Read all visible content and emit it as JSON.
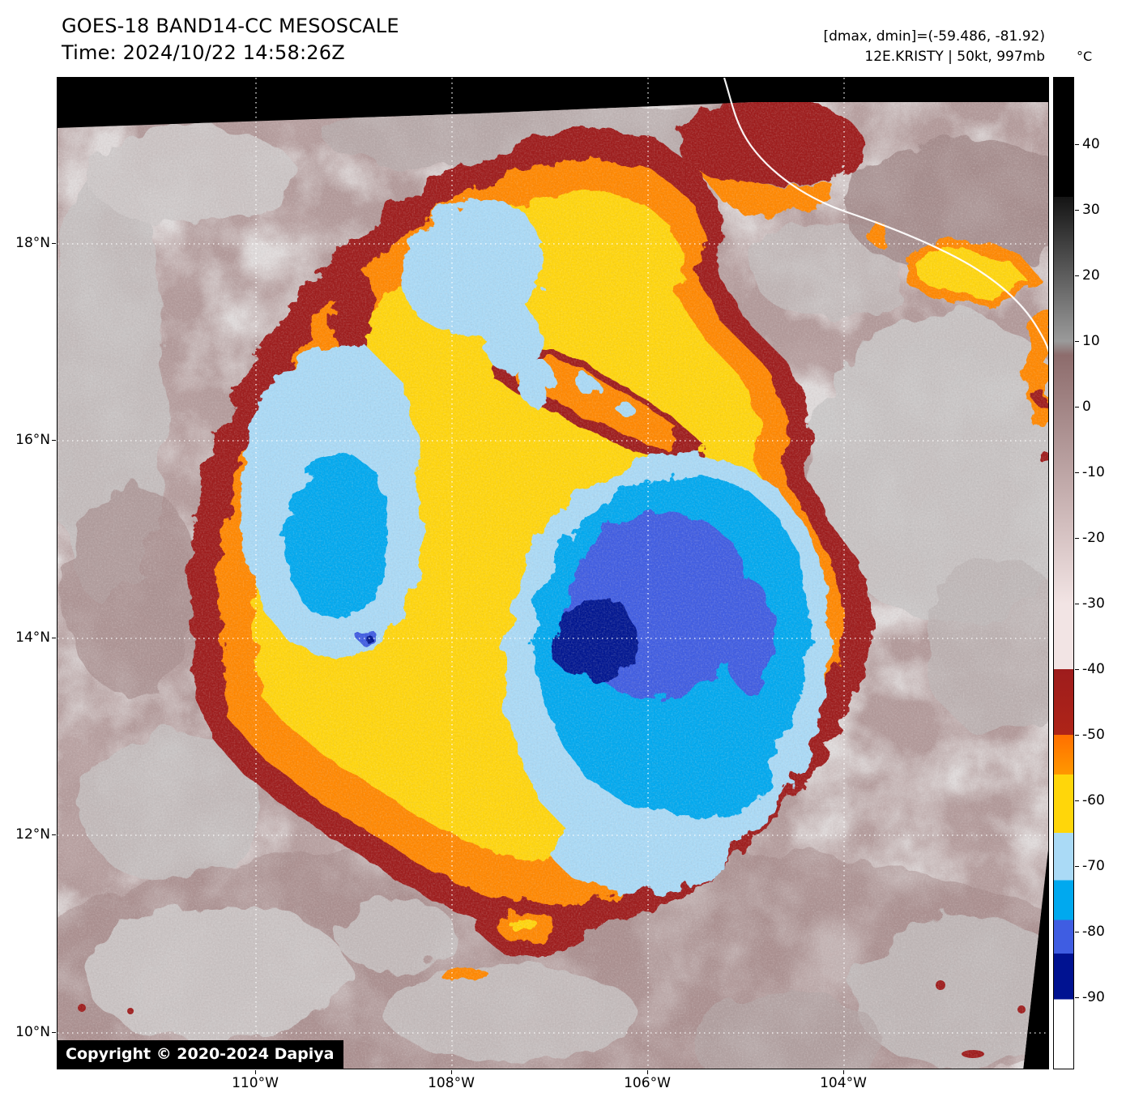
{
  "header": {
    "title": "GOES-18 BAND14-CC MESOSCALE",
    "time_line": "Time: 2024/10/22 14:58:26Z",
    "dmax_dmin": "[dmax, dmin]=(-59.486, -81.92)",
    "storm_line": "12E.KRISTY | 50kt, 997mb"
  },
  "colorbar": {
    "unit_label": "°C",
    "tick_labels": [
      "40",
      "30",
      "20",
      "10",
      "0",
      "-10",
      "-20",
      "-30",
      "-40",
      "-50",
      "-60",
      "-70",
      "-80",
      "-90"
    ]
  },
  "axes": {
    "lat_labels": [
      "18°N",
      "16°N",
      "14°N",
      "12°N",
      "10°N"
    ],
    "lon_labels": [
      "110°W",
      "108°W",
      "106°W",
      "104°W"
    ]
  },
  "map": {
    "copyright": "Copyright © 2020-2024 Dapiya"
  },
  "chart_data": {
    "type": "heatmap",
    "title": "GOES-18 BAND14-CC MESOSCALE",
    "time": "2024/10/22 14:58:26Z",
    "storm_id": "12E.KRISTY",
    "intensity": "50kt, 997mb",
    "dmax_c": -59.486,
    "dmin_c": -81.92,
    "colorbar_unit": "°C",
    "colorbar_ticks": [
      40,
      30,
      20,
      10,
      0,
      -10,
      -20,
      -30,
      -40,
      -50,
      -60,
      -70,
      -80,
      -90
    ],
    "lat_ticks": [
      "18°N",
      "16°N",
      "14°N",
      "12°N",
      "10°N"
    ],
    "lon_ticks": [
      "110°W",
      "108°W",
      "106°W",
      "104°W"
    ],
    "palette": {
      "warm_gray": "#9a9a9a",
      "mauve": "#b29a9a",
      "pale_pink": "#f2e4e4",
      "dark_red": "#9e1c1c",
      "orange": "#ff8800",
      "yellow": "#ffd60a",
      "light_blue": "#aadaf6",
      "cyan": "#00a9ef",
      "royal_blue": "#3f5de2",
      "navy": "#001291"
    }
  }
}
